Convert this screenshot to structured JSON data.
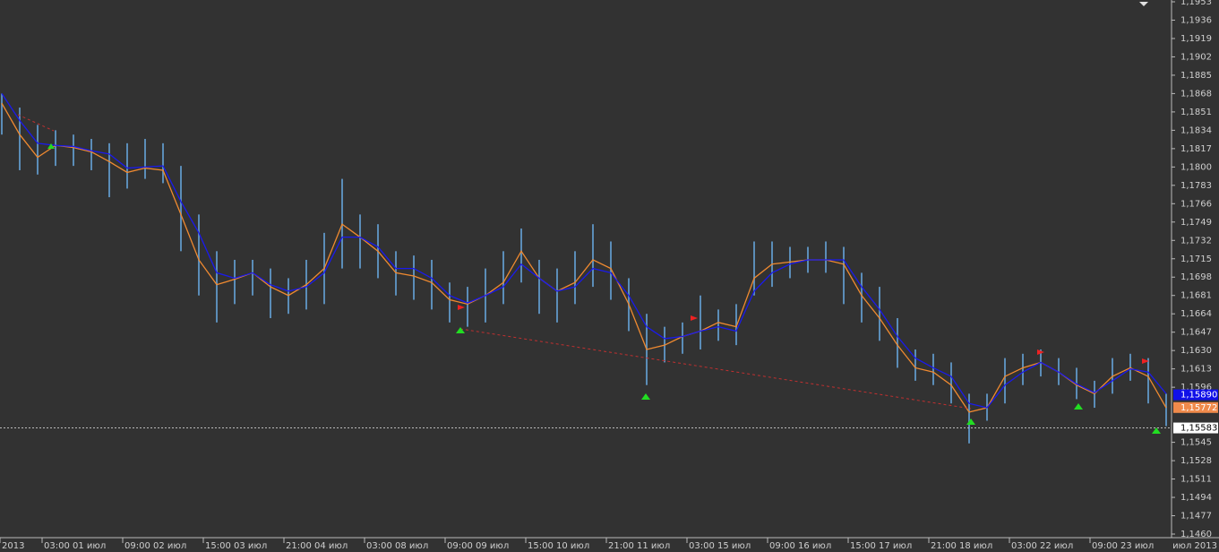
{
  "chart_data": {
    "type": "range_bar",
    "ylim": [
      1.146,
      1.1953
    ],
    "yticks": [
      {
        "value": 1.146,
        "label": "1,1460"
      },
      {
        "value": 1.1477,
        "label": "1,1477"
      },
      {
        "value": 1.1494,
        "label": "1,1494"
      },
      {
        "value": 1.1511,
        "label": "1,1511"
      },
      {
        "value": 1.1528,
        "label": "1,1528"
      },
      {
        "value": 1.1545,
        "label": "1,1545"
      },
      {
        "value": 1.1596,
        "label": "1,1596"
      },
      {
        "value": 1.1613,
        "label": "1,1613"
      },
      {
        "value": 1.163,
        "label": "1,1630"
      },
      {
        "value": 1.1647,
        "label": "1,1647"
      },
      {
        "value": 1.1664,
        "label": "1,1664"
      },
      {
        "value": 1.1681,
        "label": "1,1681"
      },
      {
        "value": 1.1698,
        "label": "1,1698"
      },
      {
        "value": 1.1715,
        "label": "1,1715"
      },
      {
        "value": 1.1732,
        "label": "1,1732"
      },
      {
        "value": 1.1749,
        "label": "1,1749"
      },
      {
        "value": 1.1766,
        "label": "1,1766"
      },
      {
        "value": 1.1783,
        "label": "1,1783"
      },
      {
        "value": 1.18,
        "label": "1,1800"
      },
      {
        "value": 1.1817,
        "label": "1,1817"
      },
      {
        "value": 1.1834,
        "label": "1,1834"
      },
      {
        "value": 1.1851,
        "label": "1,1851"
      },
      {
        "value": 1.1868,
        "label": "1,1868"
      },
      {
        "value": 1.1885,
        "label": "1,1885"
      },
      {
        "value": 1.1902,
        "label": "1,1902"
      },
      {
        "value": 1.1919,
        "label": "1,1919"
      },
      {
        "value": 1.1936,
        "label": "1,1936"
      },
      {
        "value": 1.1953,
        "label": "1,1953"
      }
    ],
    "x_labels": [
      "2013",
      "03:00 01 июл",
      "09:00 02 июл",
      "15:00 03 июл",
      "21:00 04 июл",
      "03:00 08 июл",
      "09:00 09 июл",
      "15:00 10 июл",
      "21:00 11 июл",
      "03:00 15 июл",
      "09:00 16 июл",
      "15:00 17 июл",
      "21:00 18 июл",
      "03:00 22 июл",
      "09:00 23 июл"
    ],
    "period_label": "июл 2013",
    "price_labels": [
      {
        "value": 1.1589,
        "label": "1,15890",
        "color": "#1010e8"
      },
      {
        "value": 1.15772,
        "label": "1,15772",
        "color": "#f08a4b"
      },
      {
        "value": 1.15583,
        "label": "1,15583",
        "color": "#ffffff"
      }
    ],
    "bars": {
      "color": "#5b8db8",
      "high": [
        1.1868,
        1.1855,
        1.1839,
        1.1834,
        1.183,
        1.1826,
        1.1822,
        1.1822,
        1.1826,
        1.1822,
        1.1801,
        1.1756,
        1.1722,
        1.1714,
        1.1714,
        1.1706,
        1.1697,
        1.1714,
        1.1739,
        1.1789,
        1.1756,
        1.1747,
        1.1722,
        1.1718,
        1.1714,
        1.1693,
        1.1689,
        1.1706,
        1.1722,
        1.1743,
        1.1714,
        1.1706,
        1.1722,
        1.1747,
        1.1731,
        1.1697,
        1.1664,
        1.1652,
        1.1656,
        1.1681,
        1.1668,
        1.1673,
        1.1731,
        1.1731,
        1.1726,
        1.1726,
        1.1731,
        1.1726,
        1.1702,
        1.1689,
        1.166,
        1.1631,
        1.1627,
        1.1619,
        1.159,
        1.159,
        1.1623,
        1.1627,
        1.1631,
        1.1623,
        1.1614,
        1.1602,
        1.1623,
        1.1627,
        1.1623,
        1.159
      ],
      "low": [
        1.183,
        1.1797,
        1.1793,
        1.1801,
        1.1801,
        1.1797,
        1.1772,
        1.178,
        1.1789,
        1.1785,
        1.1722,
        1.1681,
        1.1656,
        1.1673,
        1.1681,
        1.166,
        1.1664,
        1.1668,
        1.1673,
        1.1706,
        1.1706,
        1.1697,
        1.1681,
        1.1677,
        1.1668,
        1.1656,
        1.1652,
        1.1656,
        1.1673,
        1.1693,
        1.1664,
        1.1656,
        1.1673,
        1.1689,
        1.1677,
        1.1648,
        1.1598,
        1.1619,
        1.1627,
        1.1631,
        1.1639,
        1.1635,
        1.1681,
        1.1689,
        1.1697,
        1.1702,
        1.1702,
        1.1673,
        1.1656,
        1.1639,
        1.1614,
        1.1602,
        1.1598,
        1.1581,
        1.1544,
        1.1565,
        1.1581,
        1.1598,
        1.1606,
        1.1598,
        1.1585,
        1.1577,
        1.159,
        1.1602,
        1.1581,
        1.156
      ]
    },
    "series": [
      {
        "color": "#f08a30",
        "values": [
          1.1859,
          1.183,
          1.1809,
          1.182,
          1.1818,
          1.1814,
          1.1805,
          1.1795,
          1.1799,
          1.1797,
          1.1756,
          1.1714,
          1.1691,
          1.1696,
          1.1702,
          1.1689,
          1.1681,
          1.1691,
          1.1706,
          1.1747,
          1.1735,
          1.1722,
          1.1702,
          1.1699,
          1.1693,
          1.1677,
          1.1673,
          1.1681,
          1.1693,
          1.1722,
          1.1697,
          1.1685,
          1.1693,
          1.1714,
          1.1706,
          1.1673,
          1.1631,
          1.1635,
          1.1643,
          1.1648,
          1.1656,
          1.1652,
          1.1697,
          1.171,
          1.1712,
          1.1714,
          1.1714,
          1.171,
          1.1681,
          1.166,
          1.1635,
          1.1614,
          1.161,
          1.1598,
          1.1573,
          1.1577,
          1.1606,
          1.1614,
          1.1619,
          1.161,
          1.1598,
          1.159,
          1.1606,
          1.1614,
          1.1606,
          1.1577
        ]
      },
      {
        "color": "#1a1aee",
        "values": [
          1.1868,
          1.1843,
          1.1822,
          1.182,
          1.1819,
          1.1815,
          1.1812,
          1.1799,
          1.18,
          1.1801,
          1.1768,
          1.1739,
          1.1702,
          1.1697,
          1.1702,
          1.1691,
          1.1685,
          1.1689,
          1.1702,
          1.1735,
          1.1735,
          1.1726,
          1.1706,
          1.1706,
          1.1697,
          1.1681,
          1.1674,
          1.1681,
          1.1689,
          1.171,
          1.1697,
          1.1685,
          1.1689,
          1.1706,
          1.1702,
          1.1681,
          1.1652,
          1.1641,
          1.1643,
          1.1648,
          1.1652,
          1.1648,
          1.1685,
          1.1702,
          1.171,
          1.1714,
          1.1714,
          1.1714,
          1.1689,
          1.1668,
          1.1643,
          1.1623,
          1.1614,
          1.1606,
          1.1581,
          1.1577,
          1.1598,
          1.161,
          1.1619,
          1.161,
          1.1599,
          1.1591,
          1.1602,
          1.1613,
          1.161,
          1.159
        ]
      }
    ]
  }
}
